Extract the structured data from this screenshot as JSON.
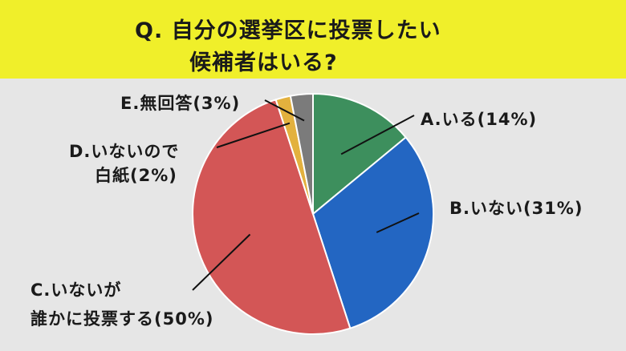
{
  "chart_data": {
    "type": "pie",
    "title_lines": [
      "Q. 自分の選挙区に投票したい",
      "候補者はいる?"
    ],
    "categories": [
      "A.いる",
      "B.いない",
      "C.いないが誰かに投票する",
      "D.いないので白紙",
      "E.無回答"
    ],
    "values": [
      14,
      31,
      50,
      2,
      3
    ],
    "unit": "%",
    "start_angle_deg": 0,
    "direction": "clockwise",
    "colors": [
      "#3d8f5d",
      "#2366c2",
      "#d35656",
      "#e3b13e",
      "#7b7b7b"
    ],
    "labels": [
      {
        "lines": [
          "A.いる(14%)"
        ]
      },
      {
        "lines": [
          "B.いない(31%)"
        ]
      },
      {
        "lines": [
          "C.いないが",
          "誰かに投票する(50%)"
        ]
      },
      {
        "lines": [
          "D.いないので",
          "白紙(2%)"
        ]
      },
      {
        "lines": [
          "E.無回答(3%)"
        ]
      }
    ],
    "legend": "none"
  }
}
